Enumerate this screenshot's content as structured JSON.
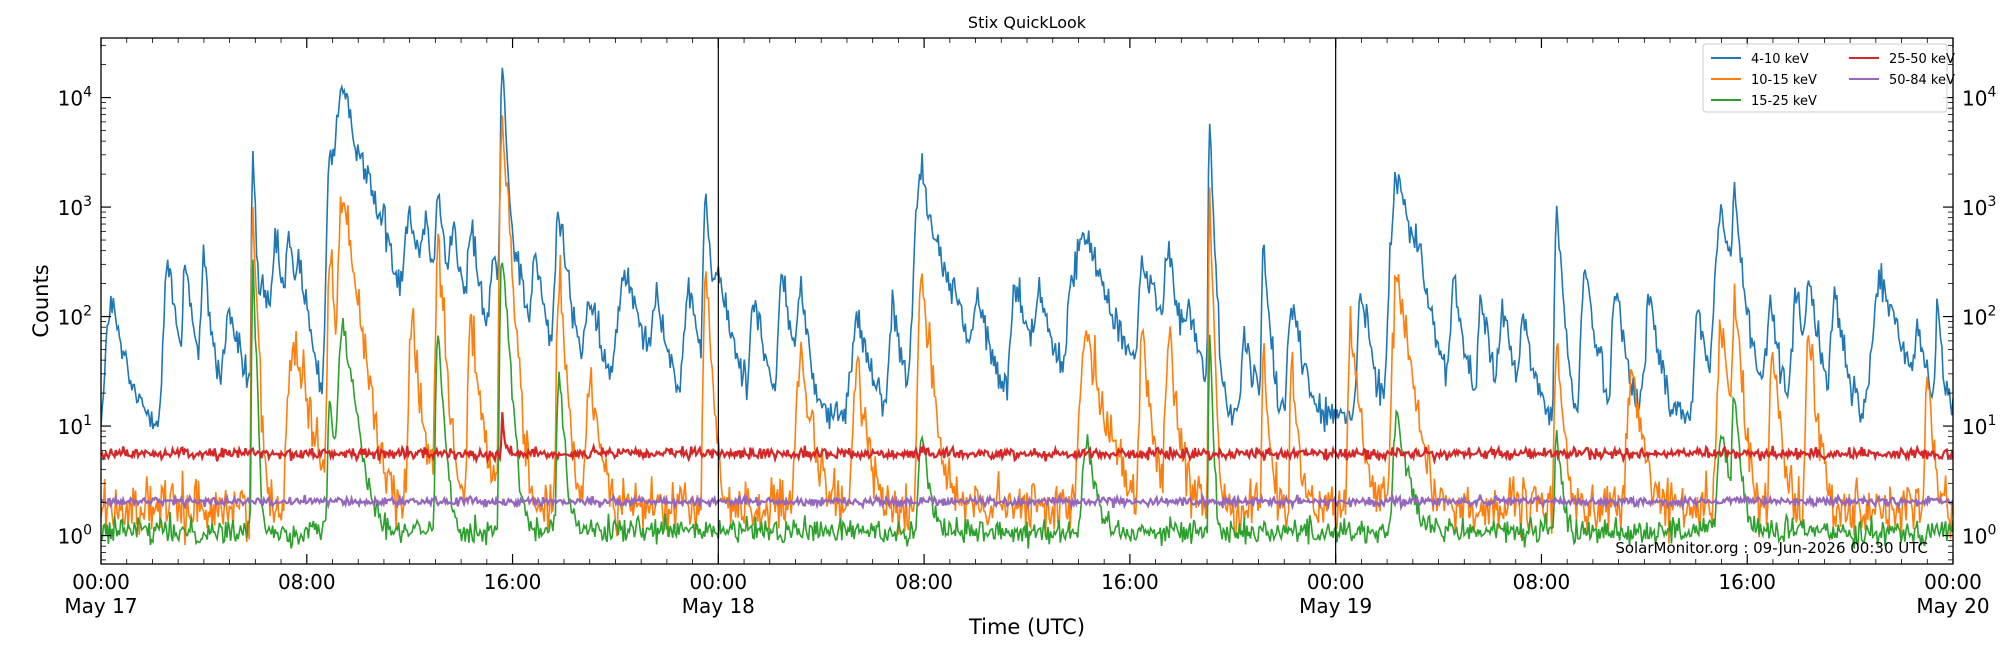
{
  "chart_data": {
    "type": "line",
    "title": "Stix QuickLook",
    "xlabel": "Time (UTC)",
    "ylabel": "Counts",
    "yscale": "log",
    "ylim": [
      0.55,
      35000
    ],
    "xlim_hours": [
      0,
      72
    ],
    "x_ticks": [
      {
        "h": 0,
        "time": "00:00",
        "date": "May 17"
      },
      {
        "h": 8,
        "time": "08:00",
        "date": ""
      },
      {
        "h": 16,
        "time": "16:00",
        "date": ""
      },
      {
        "h": 24,
        "time": "00:00",
        "date": "May 18"
      },
      {
        "h": 32,
        "time": "08:00",
        "date": ""
      },
      {
        "h": 40,
        "time": "16:00",
        "date": ""
      },
      {
        "h": 48,
        "time": "00:00",
        "date": "May 19"
      },
      {
        "h": 56,
        "time": "08:00",
        "date": ""
      },
      {
        "h": 64,
        "time": "16:00",
        "date": ""
      },
      {
        "h": 72,
        "time": "00:00",
        "date": "May 20"
      }
    ],
    "y_ticks": [
      {
        "value": 1,
        "base": "10",
        "exp": "0"
      },
      {
        "value": 10,
        "base": "10",
        "exp": "1"
      },
      {
        "value": 100,
        "base": "10",
        "exp": "2"
      },
      {
        "value": 1000,
        "base": "10",
        "exp": "3"
      },
      {
        "value": 10000,
        "base": "10",
        "exp": "4"
      }
    ],
    "day_boundaries_hours": [
      24,
      48
    ],
    "legend_position": "top-right",
    "annotation": "SolarMonitor.org : 09-Jun-2026 00:30 UTC",
    "series": [
      {
        "name": "4-10 keV",
        "color": "#1f77b4",
        "baseline": 12,
        "noise": 0.08,
        "peaks": [
          [
            0.4,
            130,
            0.25
          ],
          [
            2.6,
            280,
            0.2
          ],
          [
            3.3,
            300,
            0.15
          ],
          [
            4.0,
            290,
            0.15
          ],
          [
            5.0,
            95,
            0.3
          ],
          [
            5.9,
            3800,
            0.05
          ],
          [
            6.3,
            150,
            0.3
          ],
          [
            6.8,
            420,
            0.2
          ],
          [
            7.3,
            450,
            0.15
          ],
          [
            7.7,
            260,
            0.2
          ],
          [
            8.9,
            2400,
            0.15
          ],
          [
            9.4,
            10500,
            0.4
          ],
          [
            10.2,
            400,
            0.3
          ],
          [
            11.0,
            230,
            0.2
          ],
          [
            12.0,
            800,
            0.3
          ],
          [
            12.6,
            600,
            0.2
          ],
          [
            13.1,
            1350,
            0.15
          ],
          [
            13.7,
            580,
            0.2
          ],
          [
            14.4,
            600,
            0.2
          ],
          [
            15.3,
            300,
            0.25
          ],
          [
            15.6,
            21000,
            0.08
          ],
          [
            16.2,
            250,
            0.3
          ],
          [
            16.9,
            300,
            0.2
          ],
          [
            17.8,
            800,
            0.2
          ],
          [
            19.0,
            120,
            0.3
          ],
          [
            20.4,
            250,
            0.4
          ],
          [
            21.6,
            150,
            0.2
          ],
          [
            22.9,
            130,
            0.3
          ],
          [
            23.5,
            1250,
            0.1
          ],
          [
            24.0,
            200,
            0.3
          ],
          [
            25.4,
            150,
            0.2
          ],
          [
            26.5,
            230,
            0.2
          ],
          [
            27.2,
            180,
            0.15
          ],
          [
            29.4,
            90,
            0.3
          ],
          [
            30.8,
            110,
            0.2
          ],
          [
            31.9,
            2200,
            0.3
          ],
          [
            33.2,
            100,
            0.3
          ],
          [
            34.1,
            110,
            0.3
          ],
          [
            35.6,
            180,
            0.3
          ],
          [
            36.5,
            150,
            0.3
          ],
          [
            37.8,
            200,
            0.3
          ],
          [
            38.3,
            480,
            0.5
          ],
          [
            40.5,
            250,
            0.2
          ],
          [
            40.9,
            150,
            0.3
          ],
          [
            41.5,
            350,
            0.2
          ],
          [
            42.3,
            85,
            0.3
          ],
          [
            43.1,
            5600,
            0.06
          ],
          [
            44.5,
            60,
            0.2
          ],
          [
            45.2,
            400,
            0.1
          ],
          [
            46.3,
            140,
            0.2
          ],
          [
            49.0,
            150,
            0.2
          ],
          [
            50.4,
            2100,
            0.3
          ],
          [
            51.2,
            180,
            0.2
          ],
          [
            52.6,
            180,
            0.2
          ],
          [
            53.7,
            120,
            0.2
          ],
          [
            54.5,
            100,
            0.2
          ],
          [
            55.3,
            85,
            0.2
          ],
          [
            56.6,
            900,
            0.1
          ],
          [
            57.7,
            250,
            0.2
          ],
          [
            58.9,
            160,
            0.2
          ],
          [
            60.2,
            140,
            0.2
          ],
          [
            62.1,
            100,
            0.2
          ],
          [
            63.0,
            800,
            0.3
          ],
          [
            63.5,
            1350,
            0.1
          ],
          [
            64.9,
            110,
            0.2
          ],
          [
            65.9,
            160,
            0.2
          ],
          [
            66.4,
            180,
            0.2
          ],
          [
            67.4,
            130,
            0.2
          ],
          [
            69.2,
            210,
            0.4
          ],
          [
            70.6,
            55,
            0.2
          ],
          [
            71.4,
            110,
            0.1
          ]
        ]
      },
      {
        "name": "10-15 keV",
        "color": "#ff7f0e",
        "baseline": 1.8,
        "noise": 0.12,
        "peaks": [
          [
            5.9,
            1000,
            0.06
          ],
          [
            7.5,
            60,
            0.3
          ],
          [
            8.9,
            400,
            0.1
          ],
          [
            9.4,
            1300,
            0.2
          ],
          [
            12.1,
            100,
            0.15
          ],
          [
            13.1,
            600,
            0.1
          ],
          [
            14.4,
            100,
            0.15
          ],
          [
            15.6,
            4800,
            0.1
          ],
          [
            17.8,
            250,
            0.1
          ],
          [
            19.0,
            25,
            0.2
          ],
          [
            23.5,
            200,
            0.1
          ],
          [
            27.2,
            40,
            0.2
          ],
          [
            29.4,
            30,
            0.2
          ],
          [
            31.9,
            250,
            0.15
          ],
          [
            38.3,
            80,
            0.3
          ],
          [
            40.5,
            60,
            0.15
          ],
          [
            41.5,
            60,
            0.15
          ],
          [
            43.1,
            1200,
            0.05
          ],
          [
            45.2,
            40,
            0.1
          ],
          [
            46.3,
            40,
            0.1
          ],
          [
            48.6,
            60,
            0.15
          ],
          [
            50.4,
            250,
            0.2
          ],
          [
            56.6,
            70,
            0.1
          ],
          [
            59.5,
            30,
            0.2
          ],
          [
            63.0,
            70,
            0.2
          ],
          [
            63.5,
            170,
            0.1
          ],
          [
            65.0,
            40,
            0.15
          ],
          [
            66.4,
            60,
            0.15
          ],
          [
            71.0,
            30,
            0.1
          ]
        ]
      },
      {
        "name": "15-25 keV",
        "color": "#2ca02c",
        "baseline": 1.1,
        "noise": 0.06,
        "peaks": [
          [
            5.9,
            300,
            0.05
          ],
          [
            9.4,
            100,
            0.2
          ],
          [
            8.9,
            20,
            0.1
          ],
          [
            13.1,
            70,
            0.1
          ],
          [
            15.6,
            400,
            0.1
          ],
          [
            17.8,
            30,
            0.1
          ],
          [
            31.9,
            8,
            0.15
          ],
          [
            38.3,
            6,
            0.2
          ],
          [
            43.1,
            70,
            0.05
          ],
          [
            50.4,
            12,
            0.2
          ],
          [
            56.6,
            8,
            0.1
          ],
          [
            63.0,
            8,
            0.2
          ],
          [
            63.5,
            20,
            0.1
          ]
        ]
      },
      {
        "name": "25-50 keV",
        "color": "#d62728",
        "baseline": 5.6,
        "noise": 0.025,
        "peaks": [
          [
            15.6,
            8,
            0.05
          ],
          [
            5.9,
            1,
            0.05
          ]
        ]
      },
      {
        "name": "50-84 keV",
        "color": "#9467bd",
        "baseline": 2.05,
        "noise": 0.02,
        "peaks": []
      }
    ]
  }
}
